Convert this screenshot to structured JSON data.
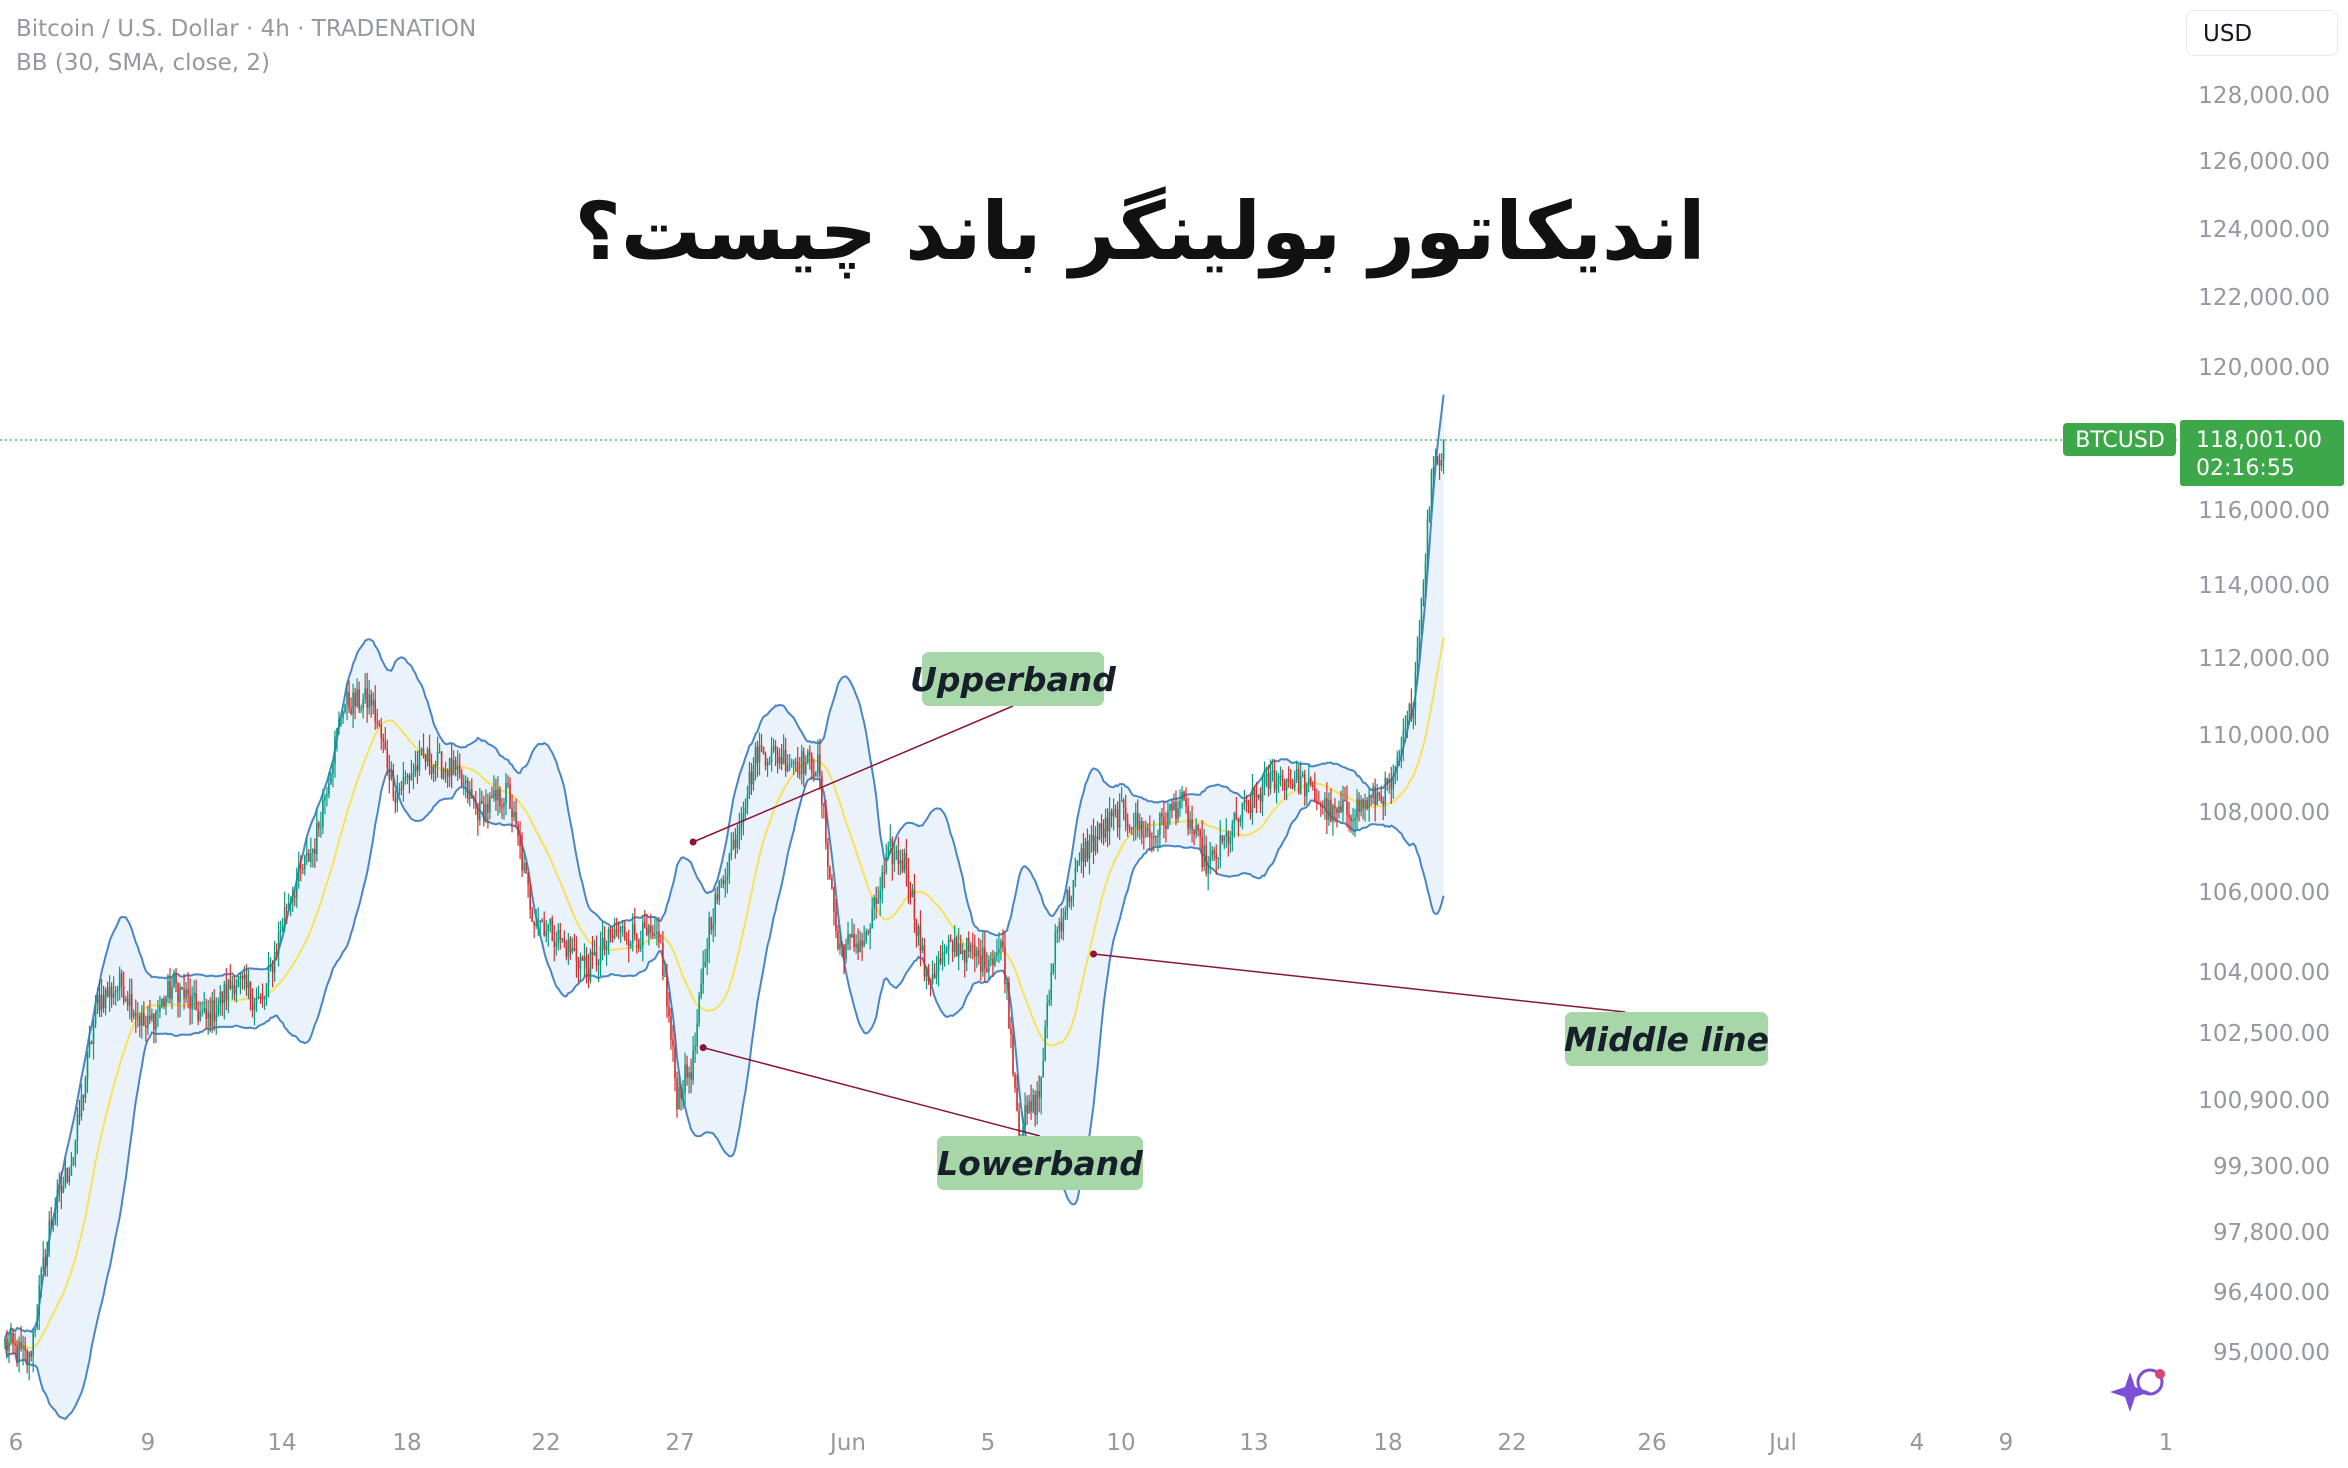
{
  "header": {
    "symbol_line": "Bitcoin / U.S. Dollar · 4h · TRADENATION",
    "indicator_line": "BB (30, SMA, close, 2)",
    "currency": "USD"
  },
  "title": "اندیکاتور بولینگر باند چیست؟",
  "price_marker": {
    "symbol": "BTCUSD",
    "price": "118,001.00",
    "countdown": "02:16:55"
  },
  "colors": {
    "up": "#089981",
    "down": "#d32f2f",
    "band": "#4a86c5",
    "band_fill": "#eaf3fb",
    "basis": "#f7e25a",
    "label_bg": "#a7d7a9",
    "price_tag": "#3da84a"
  },
  "chart_data": {
    "type": "candlestick",
    "timeframe": "4h",
    "indicator": {
      "name": "BB",
      "length": 30,
      "ma": "SMA",
      "source": "close",
      "stddev": 2
    },
    "y_axis": {
      "ticks": [
        "128,000.00",
        "126,000.00",
        "124,000.00",
        "122,000.00",
        "120,000.00",
        "116,000.00",
        "114,000.00",
        "112,000.00",
        "110,000.00",
        "108,000.00",
        "106,000.00",
        "104,000.00",
        "102,500.00",
        "100,900.00",
        "99,300.00",
        "97,800.00",
        "96,400.00",
        "95,000.00"
      ]
    },
    "x_axis": {
      "ticks": [
        "6",
        "9",
        "14",
        "18",
        "22",
        "27",
        "Jun",
        "5",
        "10",
        "13",
        "18",
        "22",
        "26",
        "Jul",
        "4",
        "9",
        "1"
      ]
    },
    "close_path": [
      {
        "i": 0,
        "p": 95200
      },
      {
        "i": 12,
        "p": 94800
      },
      {
        "i": 22,
        "p": 97900
      },
      {
        "i": 34,
        "p": 99600
      },
      {
        "i": 46,
        "p": 103300
      },
      {
        "i": 58,
        "p": 103700
      },
      {
        "i": 70,
        "p": 102600
      },
      {
        "i": 84,
        "p": 103700
      },
      {
        "i": 100,
        "p": 102800
      },
      {
        "i": 114,
        "p": 103800
      },
      {
        "i": 128,
        "p": 103200
      },
      {
        "i": 140,
        "p": 105700
      },
      {
        "i": 154,
        "p": 107200
      },
      {
        "i": 168,
        "p": 110800
      },
      {
        "i": 182,
        "p": 110900
      },
      {
        "i": 194,
        "p": 108500
      },
      {
        "i": 208,
        "p": 109400
      },
      {
        "i": 222,
        "p": 109100
      },
      {
        "i": 236,
        "p": 108000
      },
      {
        "i": 250,
        "p": 108500
      },
      {
        "i": 262,
        "p": 105500
      },
      {
        "i": 276,
        "p": 104800
      },
      {
        "i": 290,
        "p": 104100
      },
      {
        "i": 304,
        "p": 105000
      },
      {
        "i": 318,
        "p": 104900
      },
      {
        "i": 326,
        "p": 104600
      },
      {
        "i": 334,
        "p": 101000
      },
      {
        "i": 342,
        "p": 101800
      },
      {
        "i": 350,
        "p": 105200
      },
      {
        "i": 362,
        "p": 107200
      },
      {
        "i": 374,
        "p": 109600
      },
      {
        "i": 388,
        "p": 109400
      },
      {
        "i": 404,
        "p": 109200
      },
      {
        "i": 414,
        "p": 104600
      },
      {
        "i": 428,
        "p": 104800
      },
      {
        "i": 440,
        "p": 107000
      },
      {
        "i": 448,
        "p": 106700
      },
      {
        "i": 458,
        "p": 103800
      },
      {
        "i": 472,
        "p": 104700
      },
      {
        "i": 486,
        "p": 104300
      },
      {
        "i": 496,
        "p": 104600
      },
      {
        "i": 504,
        "p": 100200
      },
      {
        "i": 514,
        "p": 101000
      },
      {
        "i": 522,
        "p": 104900
      },
      {
        "i": 536,
        "p": 107000
      },
      {
        "i": 554,
        "p": 108000
      },
      {
        "i": 570,
        "p": 107400
      },
      {
        "i": 584,
        "p": 108300
      },
      {
        "i": 598,
        "p": 106600
      },
      {
        "i": 614,
        "p": 107900
      },
      {
        "i": 630,
        "p": 108900
      },
      {
        "i": 644,
        "p": 108800
      },
      {
        "i": 660,
        "p": 107900
      },
      {
        "i": 676,
        "p": 108200
      },
      {
        "i": 690,
        "p": 108700
      },
      {
        "i": 700,
        "p": 111000
      },
      {
        "i": 710,
        "p": 117500
      }
    ],
    "annotations": [
      {
        "text": "Upperband",
        "target_index": 342,
        "target_price": 107250
      },
      {
        "text": "Lowerband",
        "target_index": 347,
        "target_price": 102150
      },
      {
        "text": "Middle line",
        "target_index": 541,
        "target_price": 104450
      }
    ],
    "last_price": 118001
  }
}
